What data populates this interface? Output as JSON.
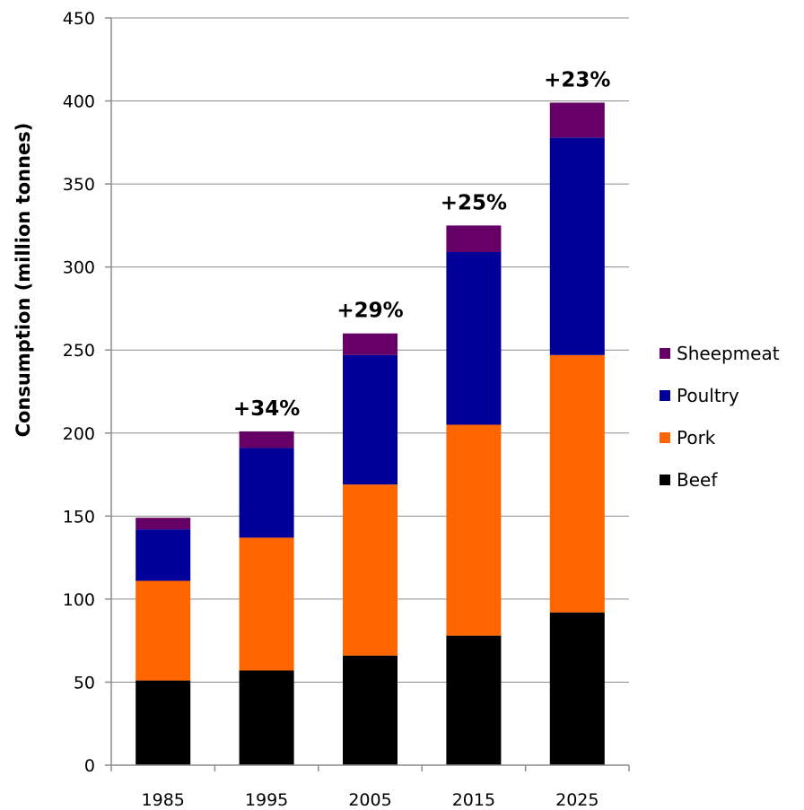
{
  "chart_data": {
    "type": "bar",
    "stacked": true,
    "categories": [
      "1985",
      "1995",
      "2005",
      "2015",
      "2025"
    ],
    "series": [
      {
        "name": "Beef",
        "color": "#000000",
        "values": [
          51,
          57,
          66,
          78,
          92
        ]
      },
      {
        "name": "Pork",
        "color": "#ff6600",
        "values": [
          60,
          80,
          103,
          127,
          155
        ]
      },
      {
        "name": "Poultry",
        "color": "#000099",
        "values": [
          31,
          54,
          78,
          104,
          131
        ]
      },
      {
        "name": "Sheepmeat",
        "color": "#660066",
        "values": [
          7,
          10,
          13,
          16,
          21
        ]
      }
    ],
    "annotations": [
      "",
      "+34%",
      "+29%",
      "+25%",
      "+23%"
    ],
    "ylabel": "Consumption (million tonnes)",
    "ylim": [
      0,
      450
    ],
    "yticks": [
      0,
      50,
      100,
      150,
      200,
      250,
      300,
      350,
      400,
      450
    ],
    "grid": true,
    "legend_position": "right"
  }
}
